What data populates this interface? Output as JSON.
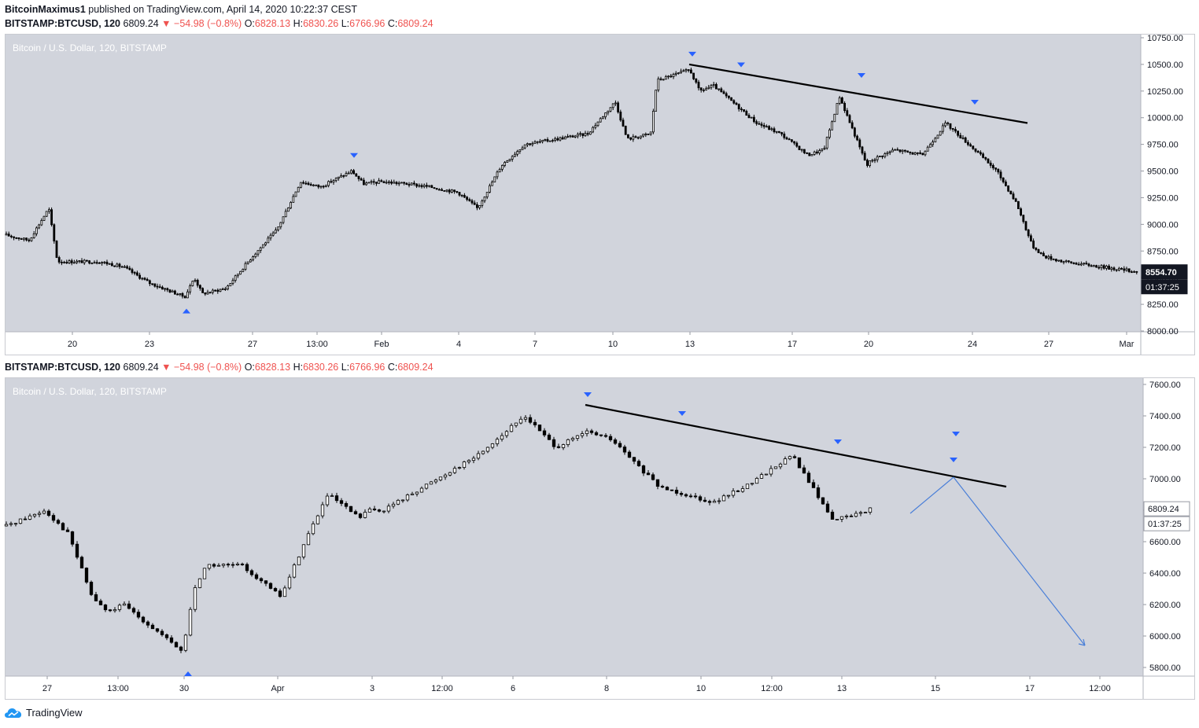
{
  "header": {
    "author": "BitcoinMaximus1",
    "published": "published on TradingView.com, April 14, 2020 10:22:37 CEST"
  },
  "symbol_line": {
    "symbol": "BITSTAMP:BTCUSD, 120",
    "last": "6809.24",
    "change": "−54.98 (−0.8%)",
    "o_label": "O:",
    "o": "6828.13",
    "h_label": "H:",
    "h": "6830.26",
    "l_label": "L:",
    "l": "6766.96",
    "c_label": "C:",
    "c": "6809.24"
  },
  "colors": {
    "pane_bg": "#d1d4dc",
    "candle": "#000000",
    "marker": "#2962ff",
    "projection": "#4a7fd8",
    "trendline": "#000000"
  },
  "footer": {
    "brand": "TradingView",
    "logo_icon": "tradingview-cloud-icon"
  },
  "chart_data": [
    {
      "type": "candlestick",
      "pane_title": "Bitcoin / U.S. Dollar, 120, BITSTAMP",
      "x_ticks": [
        "20",
        "23",
        "27",
        "13:00",
        "Feb",
        "4",
        "7",
        "10",
        "13",
        "17",
        "20",
        "24",
        "27",
        "Mar"
      ],
      "y_ticks": [
        "10750.00",
        "10500.00",
        "10250.00",
        "10000.00",
        "9750.00",
        "9500.00",
        "9250.00",
        "9000.00",
        "8750.00",
        "8500.00",
        "8250.00",
        "8000.00"
      ],
      "ylim": [
        8000,
        10750
      ],
      "price_label": "8554.70",
      "countdown_label": "01:37:25",
      "close_path": [
        [
          "Jan 17",
          8900
        ],
        [
          "Jan 18",
          8850
        ],
        [
          "Jan 19",
          9150
        ],
        [
          "Jan 19 pm",
          8650
        ],
        [
          "Jan 20",
          8650
        ],
        [
          "Jan 21",
          8650
        ],
        [
          "Jan 22",
          8600
        ],
        [
          "Jan 23",
          8450
        ],
        [
          "Jan 24",
          8320
        ],
        [
          "Jan 24 pm",
          8500
        ],
        [
          "Jan 25",
          8350
        ],
        [
          "Jan 26",
          8400
        ],
        [
          "Jan 27",
          8700
        ],
        [
          "Jan 28",
          8950
        ],
        [
          "Jan 28 pm",
          9400
        ],
        [
          "Jan 29",
          9350
        ],
        [
          "Jan 30",
          9500
        ],
        [
          "Jan 30 pm",
          9380
        ],
        [
          "Jan 31",
          9400
        ],
        [
          "Feb 1",
          9380
        ],
        [
          "Feb 2",
          9350
        ],
        [
          "Feb 3",
          9300
        ],
        [
          "Feb 4",
          9150
        ],
        [
          "Feb 5",
          9550
        ],
        [
          "Feb 6",
          9750
        ],
        [
          "Feb 7",
          9800
        ],
        [
          "Feb 8",
          9850
        ],
        [
          "Feb 9",
          10150
        ],
        [
          "Feb 10",
          9800
        ],
        [
          "Feb 11",
          9850
        ],
        [
          "Feb 12",
          10350
        ],
        [
          "Feb 13",
          10450
        ],
        [
          "Feb 13 pm",
          10250
        ],
        [
          "Feb 14",
          10300
        ],
        [
          "Feb 15",
          9950
        ],
        [
          "Feb 16",
          9850
        ],
        [
          "Feb 17",
          9650
        ],
        [
          "Feb 18",
          9700
        ],
        [
          "Feb 19",
          10200
        ],
        [
          "Feb 19 pm",
          9550
        ],
        [
          "Feb 20",
          9600
        ],
        [
          "Feb 21",
          9700
        ],
        [
          "Feb 22",
          9650
        ],
        [
          "Feb 23",
          9950
        ],
        [
          "Feb 24",
          9700
        ],
        [
          "Feb 25",
          9500
        ],
        [
          "Feb 26",
          9200
        ],
        [
          "Feb 27",
          8800
        ],
        [
          "Feb 28",
          8700
        ],
        [
          "Feb 29",
          8650
        ],
        [
          "Mar 1",
          8554.7
        ]
      ],
      "swing_highs": [
        9550,
        10500,
        10400,
        10300,
        10050
      ],
      "swing_low": 8320,
      "descending_resistance": [
        10500,
        9950
      ]
    },
    {
      "type": "candlestick",
      "pane_title": "Bitcoin / U.S. Dollar, 120, BITSTAMP",
      "x_ticks": [
        "27",
        "13:00",
        "30",
        "Apr",
        "3",
        "12:00",
        "6",
        "8",
        "10",
        "12:00",
        "13",
        "15",
        "17",
        "12:00"
      ],
      "y_ticks": [
        "7600.00",
        "7400.00",
        "7200.00",
        "7000.00",
        "6800.00",
        "6600.00",
        "6400.00",
        "6200.00",
        "6000.00",
        "5800.00"
      ],
      "ylim": [
        5800,
        7600
      ],
      "price_label": "6809.24",
      "countdown_label": "01:37:25",
      "close_path": [
        [
          "Mar 26",
          6700
        ],
        [
          "Mar 27",
          6800
        ],
        [
          "Mar 27 pm",
          6650
        ],
        [
          "Mar 28",
          6250
        ],
        [
          "Mar 29",
          6150
        ],
        [
          "Mar 29 pm",
          6200
        ],
        [
          "Mar 30",
          5900
        ],
        [
          "Mar 30 pm",
          6300
        ],
        [
          "Mar 31",
          6450
        ],
        [
          "Apr 1",
          6450
        ],
        [
          "Apr 1 pm",
          6250
        ],
        [
          "Apr 2",
          6650
        ],
        [
          "Apr 2 pm",
          6900
        ],
        [
          "Apr 3",
          6750
        ],
        [
          "Apr 4",
          6800
        ],
        [
          "Apr 5",
          6800
        ],
        [
          "Apr 6",
          7150
        ],
        [
          "Apr 7",
          7400
        ],
        [
          "Apr 7 pm",
          7200
        ],
        [
          "Apr 8",
          7300
        ],
        [
          "Apr 9",
          7250
        ],
        [
          "Apr 10",
          6950
        ],
        [
          "Apr 11",
          6850
        ],
        [
          "Apr 12",
          6950
        ],
        [
          "Apr 12 pm",
          7150
        ],
        [
          "Apr 13",
          6750
        ],
        [
          "Apr 13 pm",
          6750
        ],
        [
          "Apr 14",
          6809.24
        ]
      ],
      "swing_highs": [
        7470,
        7350,
        7170,
        7220
      ],
      "swing_low": 5850,
      "descending_resistance": [
        7470,
        6950
      ],
      "projection": [
        6780,
        7010,
        5940
      ],
      "projected_high": 7090
    }
  ]
}
